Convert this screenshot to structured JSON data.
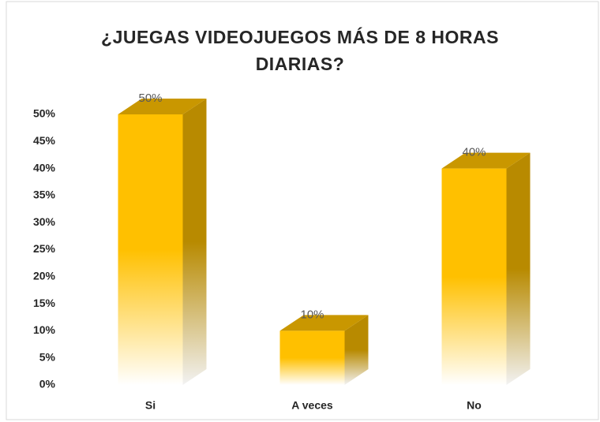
{
  "chart_data": {
    "type": "bar3d",
    "title": "¿JUEGAS VIDEOJUEGOS MÁS DE 8 HORAS DIARIAS?",
    "categories": [
      "Si",
      "A veces",
      "No"
    ],
    "values": [
      50,
      10,
      40
    ],
    "value_labels": [
      "50%",
      "10%",
      "40%"
    ],
    "color": "#ffc000",
    "ylim": [
      0,
      50
    ],
    "yticks": [
      {
        "value": 0,
        "label": "0%"
      },
      {
        "value": 5,
        "label": "5%"
      },
      {
        "value": 10,
        "label": "10%"
      },
      {
        "value": 15,
        "label": "15%"
      },
      {
        "value": 20,
        "label": "20%"
      },
      {
        "value": 25,
        "label": "25%"
      },
      {
        "value": 30,
        "label": "30%"
      },
      {
        "value": 35,
        "label": "35%"
      },
      {
        "value": 40,
        "label": "40%"
      },
      {
        "value": 45,
        "label": "45%"
      },
      {
        "value": 50,
        "label": "50%"
      }
    ],
    "grid": false
  }
}
